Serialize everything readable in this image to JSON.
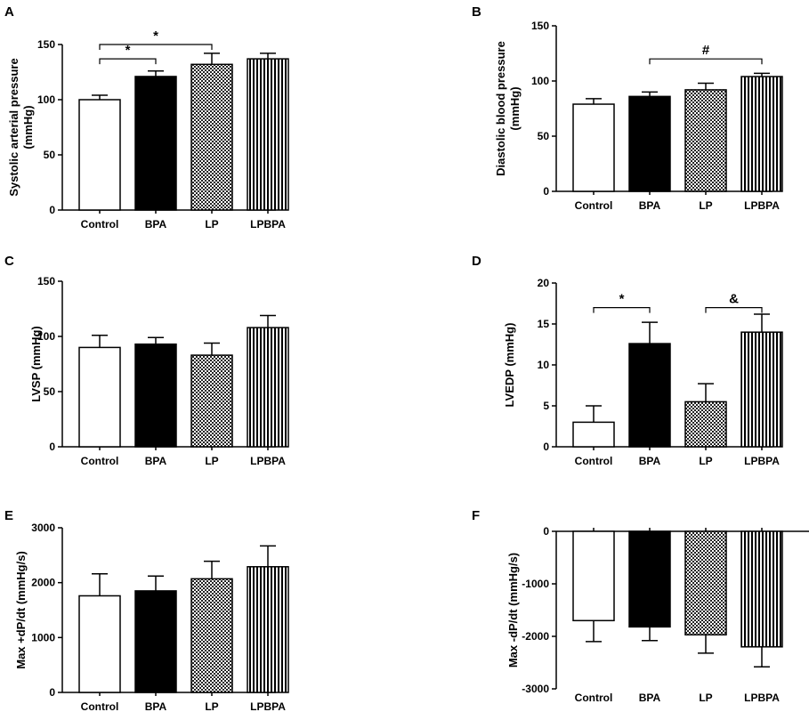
{
  "colors": {
    "axis": "#000000",
    "bar_fill_white": "#ffffff",
    "bar_fill_black": "#000000"
  },
  "chart_data": [
    {
      "panel": "A",
      "type": "bar",
      "categories": [
        "Control",
        "BPA",
        "LP",
        "LPBPA"
      ],
      "fills": [
        "white",
        "black",
        "checker",
        "vstripe"
      ],
      "values": [
        100,
        121,
        132,
        137
      ],
      "errors": [
        4,
        5,
        10,
        5
      ],
      "ylim": [
        0,
        150
      ],
      "yticks": [
        0,
        50,
        100,
        150
      ],
      "ytick_labels": [
        "0",
        "50",
        "100",
        "150"
      ],
      "ylabel": [
        "Systolic arterial pressure",
        "(mmHg)"
      ],
      "significance": [
        {
          "from": 0,
          "to": 1,
          "label": "*",
          "level": 137
        },
        {
          "from": 0,
          "to": 2,
          "label": "*",
          "level": 150
        }
      ]
    },
    {
      "panel": "B",
      "type": "bar",
      "categories": [
        "Control",
        "BPA",
        "LP",
        "LPBPA"
      ],
      "fills": [
        "white",
        "black",
        "checker",
        "vstripe"
      ],
      "values": [
        79,
        86,
        92,
        104
      ],
      "errors": [
        5,
        4,
        6,
        3
      ],
      "ylim": [
        0,
        150
      ],
      "yticks": [
        0,
        50,
        100,
        150
      ],
      "ytick_labels": [
        "0",
        "50",
        "100",
        "150"
      ],
      "ylabel": [
        "Diastolic blood pressure",
        "(mmHg)"
      ],
      "significance": [
        {
          "from": 1,
          "to": 3,
          "label": "#",
          "level": 120
        }
      ]
    },
    {
      "panel": "C",
      "type": "bar",
      "categories": [
        "Control",
        "BPA",
        "LP",
        "LPBPA"
      ],
      "fills": [
        "white",
        "black",
        "checker",
        "vstripe"
      ],
      "values": [
        90,
        93,
        83,
        108
      ],
      "errors": [
        11,
        6,
        11,
        11
      ],
      "ylim": [
        0,
        150
      ],
      "yticks": [
        0,
        50,
        100,
        150
      ],
      "ytick_labels": [
        "0",
        "50",
        "100",
        "150"
      ],
      "ylabel": [
        "LVSP (mmHg)"
      ],
      "significance": []
    },
    {
      "panel": "D",
      "type": "bar",
      "categories": [
        "Control",
        "BPA",
        "LP",
        "LPBPA"
      ],
      "fills": [
        "white",
        "black",
        "checker",
        "vstripe"
      ],
      "values": [
        3,
        12.6,
        5.5,
        14
      ],
      "errors": [
        2,
        2.6,
        2.2,
        2.2
      ],
      "ylim": [
        0,
        20
      ],
      "yticks": [
        0,
        5,
        10,
        15,
        20
      ],
      "ytick_labels": [
        "0",
        "5",
        "10",
        "15",
        "20"
      ],
      "ylabel": [
        "LVEDP (mmHg)"
      ],
      "significance": [
        {
          "from": 0,
          "to": 1,
          "label": "*",
          "level": 17
        },
        {
          "from": 2,
          "to": 3,
          "label": "&",
          "level": 17
        }
      ]
    },
    {
      "panel": "E",
      "type": "bar",
      "categories": [
        "Control",
        "BPA",
        "LP",
        "LPBPA"
      ],
      "fills": [
        "white",
        "black",
        "checker",
        "vstripe"
      ],
      "values": [
        1760,
        1850,
        2070,
        2290
      ],
      "errors": [
        400,
        270,
        320,
        380
      ],
      "ylim": [
        0,
        3000
      ],
      "yticks": [
        0,
        1000,
        2000,
        3000
      ],
      "ytick_labels": [
        "0",
        "1000",
        "2000",
        "3000"
      ],
      "ylabel": [
        "Max +dP/dt (mmHg/s)"
      ],
      "significance": []
    },
    {
      "panel": "F",
      "type": "bar",
      "categories": [
        "Control",
        "BPA",
        "LP",
        "LPBPA"
      ],
      "fills": [
        "white",
        "black",
        "checker",
        "vstripe"
      ],
      "values": [
        -1700,
        -1820,
        -1970,
        -2200
      ],
      "errors": [
        400,
        260,
        350,
        380
      ],
      "ylim": [
        -3000,
        0
      ],
      "yticks": [
        -3000,
        -2000,
        -1000,
        0
      ],
      "ytick_labels": [
        "-3000",
        "-2000",
        "-1000",
        "0"
      ],
      "ylabel": [
        "Max -dP/dt (mmHg/s)"
      ],
      "significance": []
    }
  ]
}
